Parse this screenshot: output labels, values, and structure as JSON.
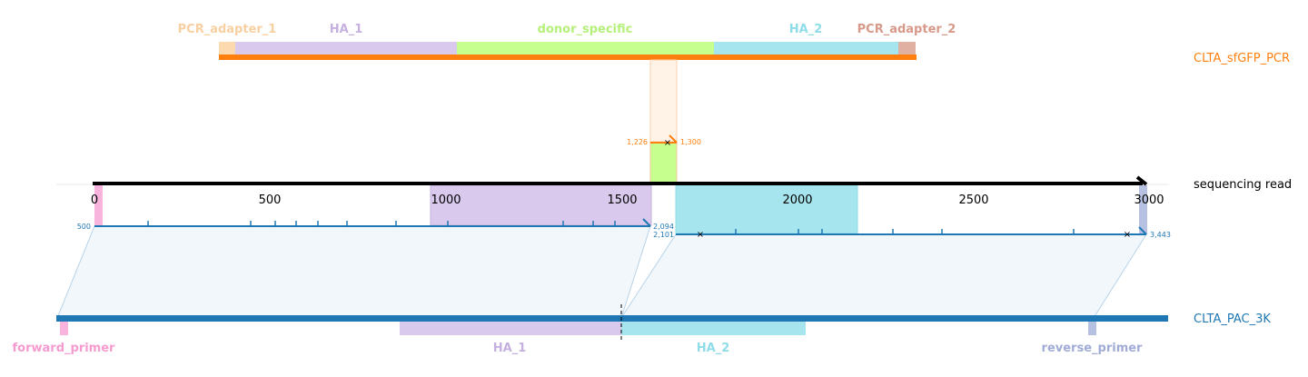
{
  "tracks": {
    "pcr": {
      "name": "CLTA_sfGFP_PCR",
      "color": "#ff7f0e",
      "features": [
        {
          "name": "PCR_adapter_1",
          "color": "#fdd9b0",
          "label_color": "#f8cfa0"
        },
        {
          "name": "HA_1",
          "color": "#d9c9ec",
          "label_color": "#c5b0e0"
        },
        {
          "name": "donor_specific",
          "color": "#c6ff8e",
          "label_color": "#b5f07a"
        },
        {
          "name": "HA_2",
          "color": "#a6e5ee",
          "label_color": "#8fdde8"
        },
        {
          "name": "PCR_adapter_2",
          "color": "#e0b0a3",
          "label_color": "#d9998a"
        }
      ],
      "alignment": {
        "start_label": "1,226",
        "end_label": "1,300",
        "mismatch_marker": "×"
      }
    },
    "read": {
      "name": "sequencing read",
      "color": "#000000",
      "axis_ticks": [
        "0",
        "500",
        "1000",
        "1500",
        "2000",
        "2500",
        "3000"
      ],
      "segment1": {
        "start_label": "500",
        "end_label": "2,094",
        "color": "#1f77b4"
      },
      "segment2": {
        "start_label": "2,101",
        "end_label": "3,443",
        "color": "#1f77b4",
        "mismatch_marker": "×"
      }
    },
    "ref": {
      "name": "CLTA_PAC_3K",
      "color": "#1f77b4",
      "features": [
        {
          "name": "forward_primer",
          "color": "#f8b4dc",
          "label_color": "#f59bd0"
        },
        {
          "name": "HA_1",
          "color": "#d9c9ec",
          "label_color": "#c5b0e0"
        },
        {
          "name": "HA_2",
          "color": "#a6e5ee",
          "label_color": "#8fdde8"
        },
        {
          "name": "reverse_primer",
          "color": "#b6c0e0",
          "label_color": "#a0acd5"
        }
      ]
    }
  }
}
